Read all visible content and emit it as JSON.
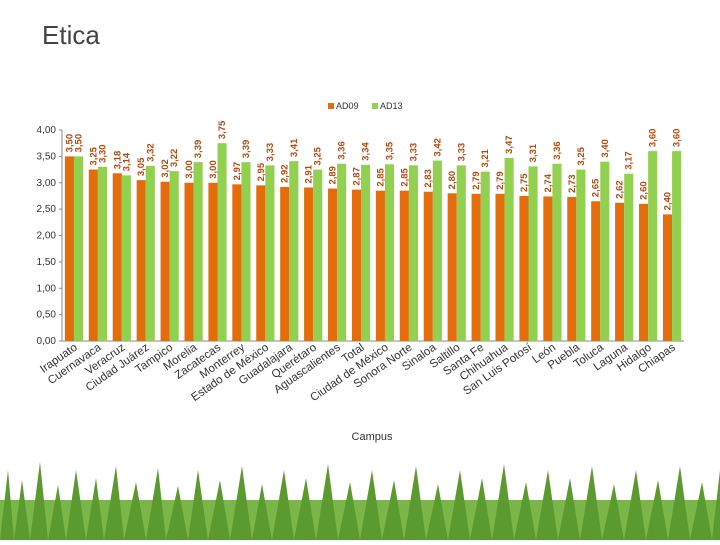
{
  "page_title": "Etica",
  "chart_data": {
    "type": "bar",
    "xlabel": "Campus",
    "categories": [
      "Irapuato",
      "Cuernavaca",
      "Veracruz",
      "Ciudad Juárez",
      "Tampico",
      "Morelia",
      "Zacatecas",
      "Monterrey",
      "Estado de México",
      "Guadalajara",
      "Querétaro",
      "Aguascalientes",
      "Total",
      "Ciudad de México",
      "Sonora Norte",
      "Sinaloa",
      "Saltillo",
      "Santa Fe",
      "Chihuahua",
      "San Luis Potosí",
      "León",
      "Puebla",
      "Toluca",
      "Laguna",
      "Hidalgo",
      "Chiapas"
    ],
    "series": [
      {
        "name": "AD09",
        "color": "#e46c0a",
        "values": [
          3.5,
          3.25,
          3.18,
          3.05,
          3.02,
          3.0,
          3.0,
          2.97,
          2.95,
          2.92,
          2.91,
          2.89,
          2.87,
          2.85,
          2.85,
          2.83,
          2.8,
          2.79,
          2.79,
          2.75,
          2.74,
          2.73,
          2.65,
          2.62,
          2.6,
          2.4
        ],
        "value_labels": [
          "3,50",
          "3,25",
          "3,18",
          "3,05",
          "3,02",
          "3,00",
          "3,00",
          "2,97",
          "2,95",
          "2,92",
          "2,91",
          "2,89",
          "2,87",
          "2,85",
          "2,85",
          "2,83",
          "2,80",
          "2,79",
          "2,79",
          "2,75",
          "2,74",
          "2,73",
          "2,65",
          "2,62",
          "2,60",
          "2,40"
        ]
      },
      {
        "name": "AD13",
        "color": "#92d050",
        "values": [
          3.5,
          3.3,
          3.14,
          3.32,
          3.22,
          3.39,
          3.75,
          3.39,
          3.33,
          3.41,
          3.25,
          3.36,
          3.34,
          3.35,
          3.33,
          3.42,
          3.33,
          3.21,
          3.47,
          3.31,
          3.36,
          3.25,
          3.4,
          3.17,
          3.6,
          3.6
        ],
        "value_labels": [
          "3,50",
          "3,30",
          "3,14",
          "3,32",
          "3,22",
          "3,39",
          "3,75",
          "3,39",
          "3,33",
          "3,41",
          "3,25",
          "3,36",
          "3,34",
          "3,35",
          "3,33",
          "3,42",
          "3,33",
          "3,21",
          "3,47",
          "3,31",
          "3,36",
          "3,25",
          "3,40",
          "3,17",
          "3,60",
          "3,60"
        ]
      }
    ],
    "ylim": [
      0,
      4
    ],
    "yticks": [
      {
        "value": 0,
        "label": "0,00"
      },
      {
        "value": 0.5,
        "label": "0,50"
      },
      {
        "value": 1,
        "label": "1,00"
      },
      {
        "value": 1.5,
        "label": "1,50"
      },
      {
        "value": 2,
        "label": "2,00"
      },
      {
        "value": 2.5,
        "label": "2,50"
      },
      {
        "value": 3,
        "label": "3,00"
      },
      {
        "value": 3.5,
        "label": "3,50"
      },
      {
        "value": 4,
        "label": "4,00"
      }
    ],
    "grid": false,
    "legend": "top"
  }
}
